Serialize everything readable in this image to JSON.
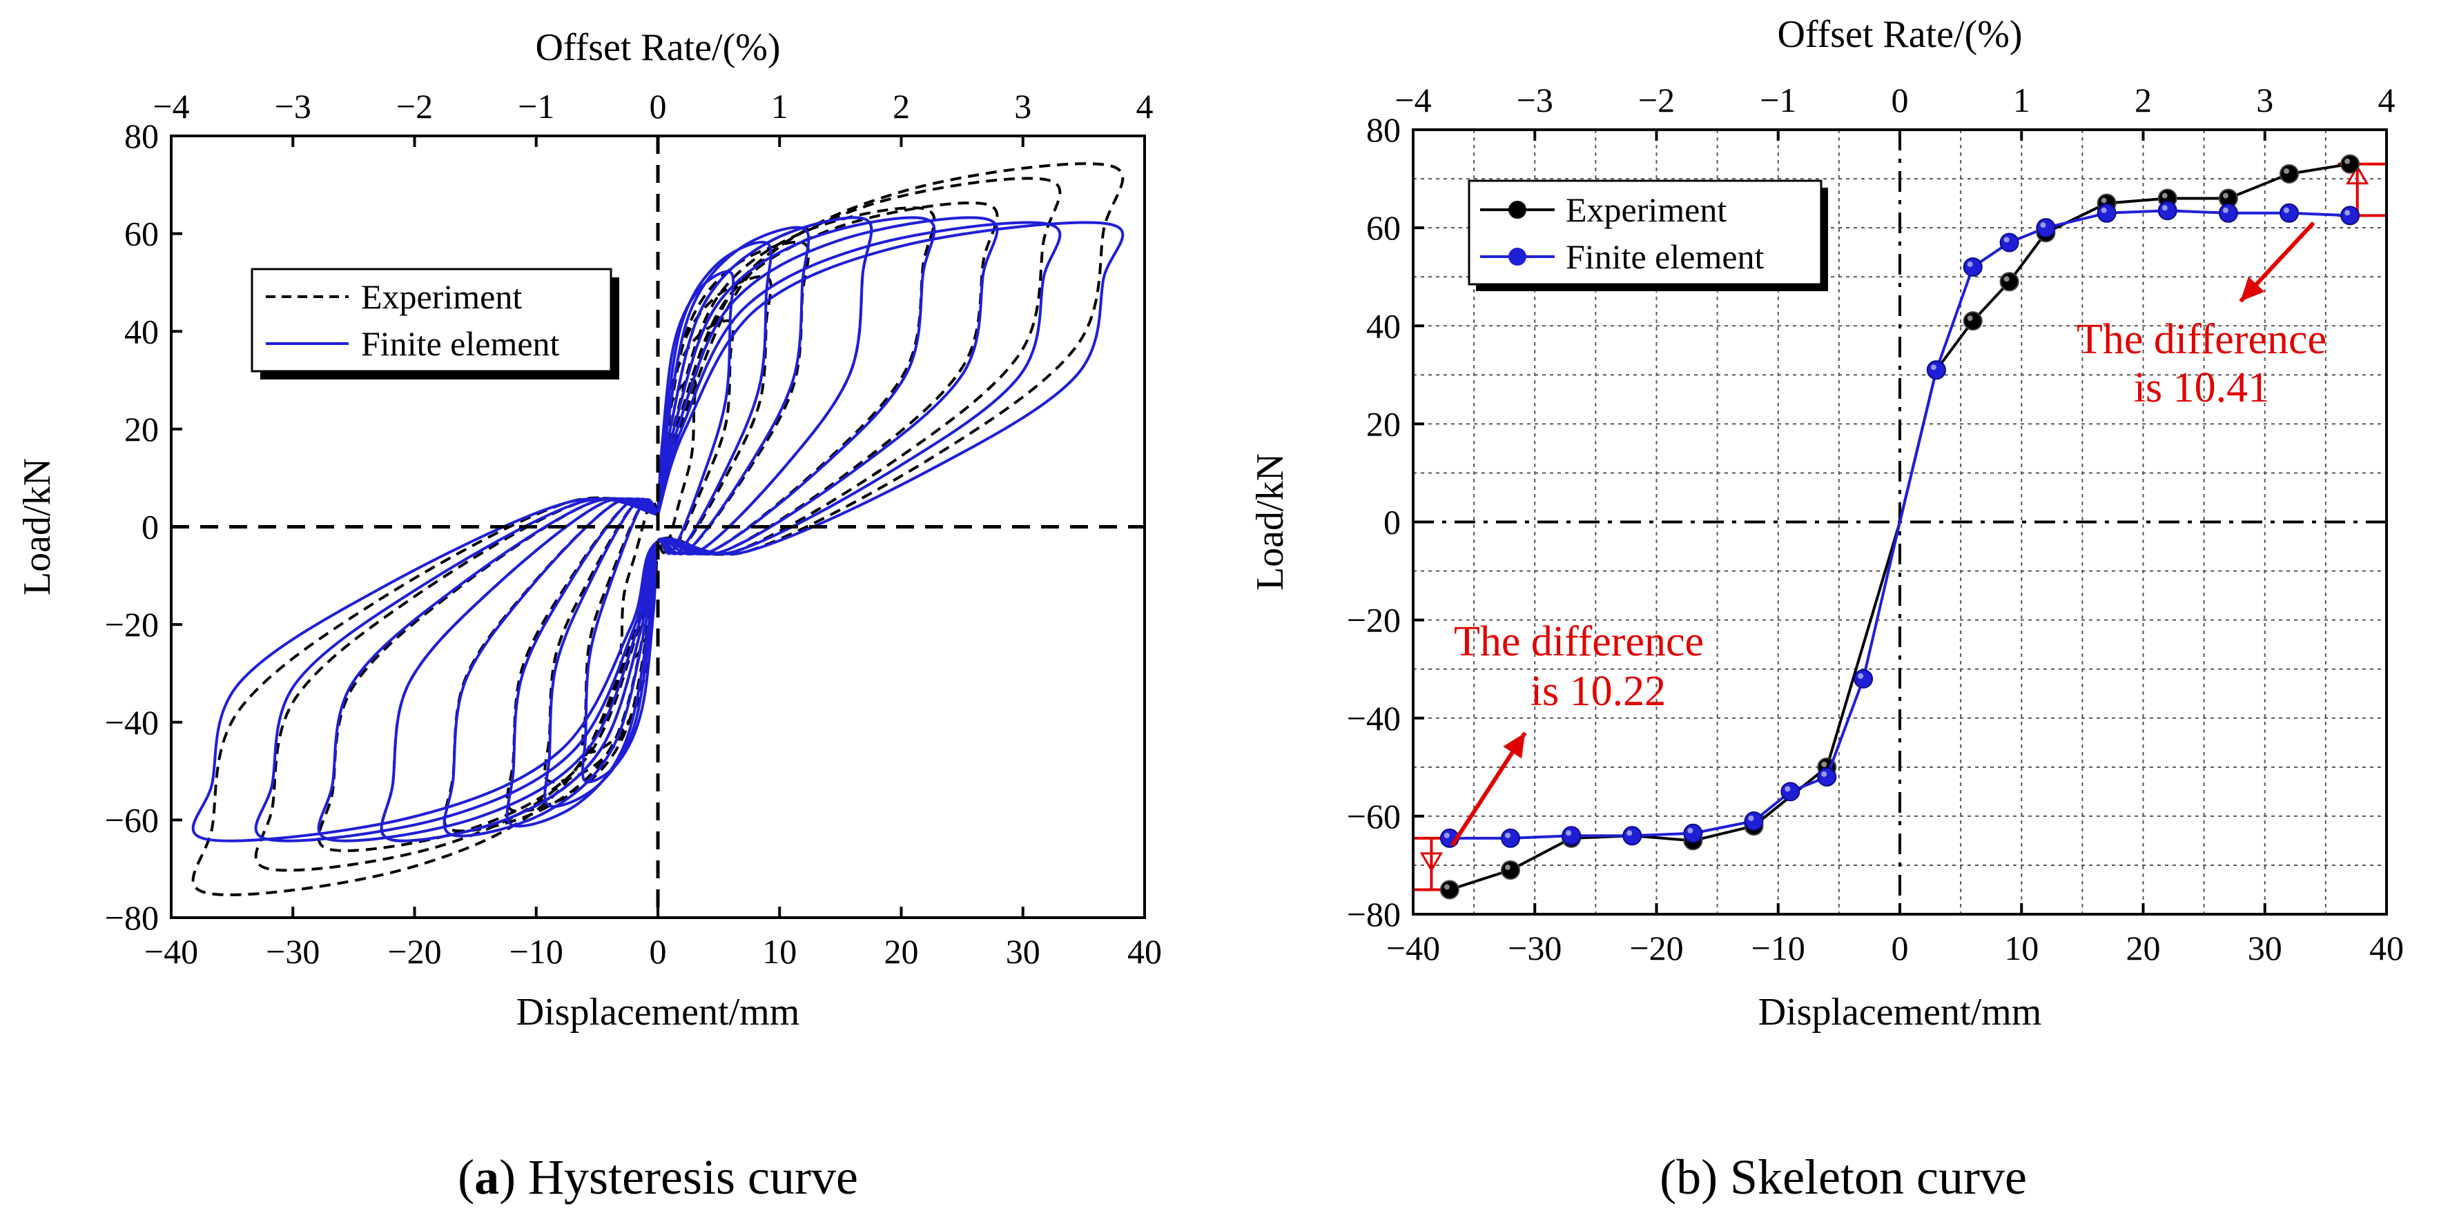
{
  "chart_data": [
    {
      "type": "line",
      "caption_bold": "a",
      "caption_rest": " Hysteresis curve",
      "xlabel": "Displacement/mm",
      "ylabel": "Load/kN",
      "top_xlabel": "Offset Rate/(%)",
      "xlim": [
        -40,
        40
      ],
      "ylim": [
        -80,
        80
      ],
      "top_xlim": [
        -4,
        4
      ],
      "x_ticks": [
        -40,
        -30,
        -20,
        -10,
        0,
        10,
        20,
        30,
        40
      ],
      "y_ticks": [
        -80,
        -60,
        -40,
        -20,
        0,
        20,
        40,
        60,
        80
      ],
      "top_ticks": [
        -4,
        -3,
        -2,
        -1,
        0,
        1,
        2,
        3,
        4
      ],
      "grid": false,
      "legend_position": "upper-left",
      "series": [
        {
          "name": "Experiment",
          "style": "dashed",
          "color": "#000000",
          "loops": [
            {
              "d": 3,
              "pos": 30,
              "neg": -28
            },
            {
              "d": 6,
              "pos": 42,
              "neg": -46
            },
            {
              "d": 9,
              "pos": 51,
              "neg": -52
            },
            {
              "d": 12,
              "pos": 58,
              "neg": -58
            },
            {
              "d": 17,
              "pos": 63,
              "neg": -62
            },
            {
              "d": 22,
              "pos": 65,
              "neg": -64
            },
            {
              "d": 27,
              "pos": 66,
              "neg": -66
            },
            {
              "d": 32,
              "pos": 71,
              "neg": -70
            },
            {
              "d": 37,
              "pos": 74,
              "neg": -75
            }
          ]
        },
        {
          "name": "Finite element",
          "style": "solid",
          "color": "#1f1fd6",
          "loops": [
            {
              "d": 6,
              "pos": 52,
              "neg": -52
            },
            {
              "d": 9,
              "pos": 58,
              "neg": -57
            },
            {
              "d": 12,
              "pos": 61,
              "neg": -61
            },
            {
              "d": 17,
              "pos": 63,
              "neg": -63
            },
            {
              "d": 22,
              "pos": 63,
              "neg": -64
            },
            {
              "d": 27,
              "pos": 63,
              "neg": -64
            },
            {
              "d": 32,
              "pos": 62,
              "neg": -64
            },
            {
              "d": 37,
              "pos": 62,
              "neg": -64
            }
          ]
        }
      ]
    },
    {
      "type": "line",
      "caption": "(b) Skeleton curve",
      "xlabel": "Displacement/mm",
      "ylabel": "Load/kN",
      "top_xlabel": "Offset Rate/(%)",
      "xlim": [
        -40,
        40
      ],
      "ylim": [
        -80,
        80
      ],
      "top_xlim": [
        -4,
        4
      ],
      "x_ticks": [
        -40,
        -30,
        -20,
        -10,
        0,
        10,
        20,
        30,
        40
      ],
      "y_ticks": [
        -80,
        -60,
        -40,
        -20,
        0,
        20,
        40,
        60,
        80
      ],
      "top_ticks": [
        -4,
        -3,
        -2,
        -1,
        0,
        1,
        2,
        3,
        4
      ],
      "grid": true,
      "legend_position": "upper-left",
      "series": [
        {
          "name": "Experiment",
          "color": "#000000",
          "x": [
            -37,
            -32,
            -27,
            -22,
            -17,
            -12,
            -6,
            0,
            3,
            6,
            9,
            12,
            17,
            22,
            27,
            32,
            37
          ],
          "y": [
            -75,
            -71,
            -64.5,
            -64,
            -65,
            -62,
            -50,
            0,
            31,
            41,
            49,
            59,
            65,
            66,
            66,
            71,
            73
          ]
        },
        {
          "name": "Finite element",
          "color": "#1f1fd6",
          "x": [
            -37,
            -32,
            -27,
            -22,
            -17,
            -12,
            -9,
            -6,
            -3,
            0,
            3,
            6,
            9,
            12,
            17,
            22,
            27,
            32,
            37
          ],
          "y": [
            -64.5,
            -64.5,
            -64,
            -64,
            -63.5,
            -61,
            -55,
            -52,
            -32,
            0,
            31,
            52,
            57,
            60,
            63,
            63.5,
            63,
            63,
            62.5
          ]
        }
      ],
      "annotations": [
        {
          "line1": "The difference",
          "line2": "is 10.41",
          "color": "#e00000"
        },
        {
          "line1": "The difference",
          "line2": "is 10.22",
          "color": "#e00000"
        }
      ]
    }
  ]
}
